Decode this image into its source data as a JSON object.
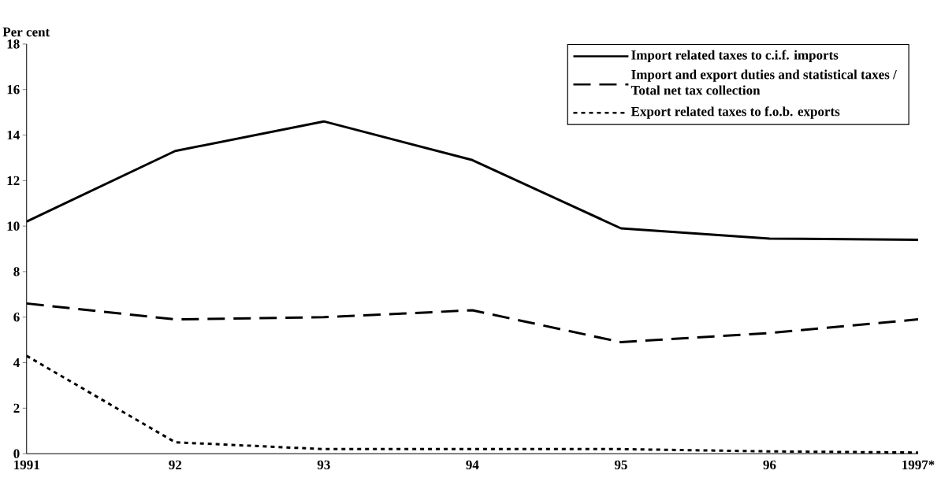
{
  "chart_data": {
    "type": "line",
    "ylabel": "Per cent",
    "categories": [
      "1991",
      "92",
      "93",
      "94",
      "95",
      "96",
      "1997*"
    ],
    "series": [
      {
        "name": "Import related taxes to c.i.f. imports",
        "color": "#000000",
        "line_style": "solid",
        "values": [
          10.2,
          13.3,
          14.6,
          12.9,
          9.9,
          9.45,
          9.4
        ]
      },
      {
        "name": "Import and export duties and statistical taxes / Total net tax collection",
        "color": "#000000",
        "line_style": "dashed",
        "values": [
          6.6,
          5.9,
          6.0,
          6.3,
          4.9,
          5.3,
          5.9
        ]
      },
      {
        "name": "Export related taxes to f.o.b. exports",
        "color": "#000000",
        "line_style": "dotted",
        "values": [
          4.3,
          0.5,
          0.2,
          0.2,
          0.2,
          0.1,
          0.05
        ]
      }
    ],
    "ylim": [
      0,
      18
    ],
    "yticks": [
      0,
      2,
      4,
      6,
      8,
      10,
      12,
      14,
      16,
      18
    ],
    "grid": false,
    "legend": "top right",
    "marker": "none"
  }
}
